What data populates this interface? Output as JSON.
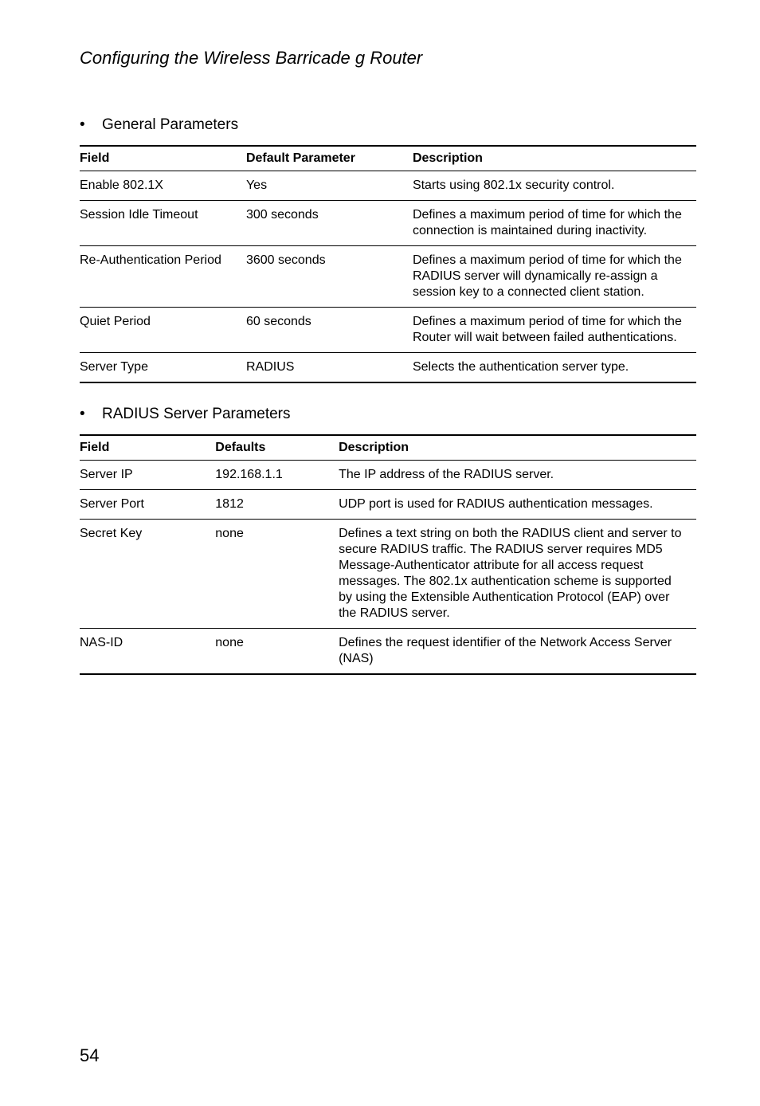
{
  "page": {
    "running_head": "Configuring the Wireless Barricade g Router",
    "page_number": "54"
  },
  "section1": {
    "heading": "General Parameters",
    "columns": [
      "Field",
      "Default Parameter",
      "Description"
    ],
    "rows": [
      {
        "field": "Enable 802.1X",
        "default": "Yes",
        "desc": "Starts using 802.1x security control."
      },
      {
        "field": "Session Idle Timeout",
        "default": "300 seconds",
        "desc": "Defines a maximum period of time for which the connection is maintained during inactivity."
      },
      {
        "field": "Re-Authentication Period",
        "default": "3600 seconds",
        "desc": "Defines a maximum period of time for which the RADIUS server will dynamically re-assign a session key to a connected client station."
      },
      {
        "field": "Quiet Period",
        "default": "60 seconds",
        "desc": "Defines a maximum period of time for which the Router will wait between failed authentications."
      },
      {
        "field": "Server Type",
        "default": "RADIUS",
        "desc": "Selects the authentication server type."
      }
    ]
  },
  "section2": {
    "heading": "RADIUS Server Parameters",
    "columns": [
      "Field",
      "Defaults",
      "Description"
    ],
    "rows": [
      {
        "field": "Server IP",
        "default": "192.168.1.1",
        "desc": "The IP address of the RADIUS server."
      },
      {
        "field": "Server Port",
        "default": "1812",
        "desc": "UDP port is used for RADIUS authentication messages."
      },
      {
        "field": "Secret Key",
        "default": "none",
        "desc": "Defines a text string on both the RADIUS client and server to secure RADIUS traffic. The RADIUS server requires MD5 Message-Authenticator attribute for all access request messages. The 802.1x authentication scheme is supported by using the Extensible Authentication Protocol (EAP) over the RADIUS server."
      },
      {
        "field": "NAS-ID",
        "default": "none",
        "desc": "Defines the request identifier of the Network Access Server (NAS)"
      }
    ]
  }
}
